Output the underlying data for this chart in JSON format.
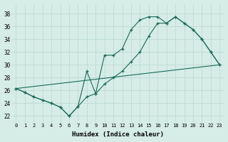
{
  "xlabel": "Humidex (Indice chaleur)",
  "background_color": "#d6ece6",
  "grid_color": "#b8d8d0",
  "line_color": "#1a6b5a",
  "xlim": [
    -0.5,
    23.5
  ],
  "ylim": [
    21.0,
    39.5
  ],
  "xticks": [
    0,
    1,
    2,
    3,
    4,
    5,
    6,
    7,
    8,
    9,
    10,
    11,
    12,
    13,
    14,
    15,
    16,
    17,
    18,
    19,
    20,
    21,
    22,
    23
  ],
  "yticks": [
    22,
    24,
    26,
    28,
    30,
    32,
    34,
    36,
    38
  ],
  "line1_x": [
    0,
    1,
    2,
    3,
    4,
    5,
    6,
    7,
    8,
    9,
    10,
    11,
    12,
    13,
    14,
    15,
    16,
    17,
    18,
    19,
    20,
    21,
    22,
    23
  ],
  "line1_y": [
    26.3,
    25.7,
    25.0,
    24.5,
    24.0,
    23.4,
    22.0,
    23.5,
    25.0,
    25.5,
    27.0,
    28.0,
    29.0,
    30.5,
    32.0,
    34.5,
    36.5,
    36.5,
    37.5,
    36.5,
    35.5,
    34.0,
    32.0,
    30.0
  ],
  "line2_x": [
    0,
    1,
    2,
    3,
    4,
    5,
    6,
    7,
    8,
    9,
    10,
    11,
    12,
    13,
    14,
    15,
    16,
    17,
    18,
    19,
    20,
    21,
    22,
    23
  ],
  "line2_y": [
    26.3,
    25.7,
    25.0,
    24.5,
    24.0,
    23.4,
    22.0,
    23.5,
    29.0,
    25.5,
    31.5,
    31.5,
    32.5,
    35.5,
    37.0,
    37.5,
    37.5,
    36.5,
    37.5,
    36.5,
    35.5,
    34.0,
    32.0,
    30.0
  ],
  "line3_x": [
    0,
    23
  ],
  "line3_y": [
    26.3,
    30.0
  ]
}
